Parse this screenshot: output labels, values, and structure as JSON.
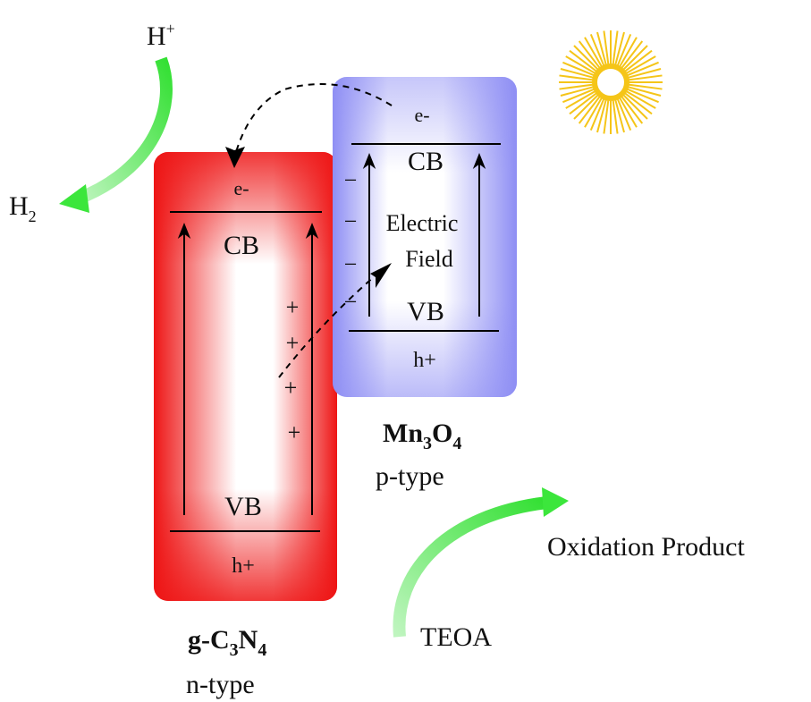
{
  "reactants": {
    "proton": "H",
    "proton_sup": "+",
    "hydrogen": "H",
    "hydrogen_sub": "2",
    "donor": "TEOA",
    "product": "Oxidation Product"
  },
  "gcn": {
    "electron": "e-",
    "cb": "CB",
    "vb": "VB",
    "hole": "h+",
    "name_a": "g-C",
    "name_sub1": "3",
    "name_b": "N",
    "name_sub2": "4",
    "type": "n-type",
    "charges": [
      "+",
      "+",
      "+",
      "+"
    ],
    "color": "#ee1c1c"
  },
  "mno": {
    "electron": "e-",
    "cb": "CB",
    "vb": "VB",
    "hole": "h+",
    "name_a": "Mn",
    "name_sub1": "3",
    "name_b": "O",
    "name_sub2": "4",
    "type": "p-type",
    "charges": [
      "−",
      "−",
      "−",
      "−"
    ],
    "color": "#8c8cf2"
  },
  "field": {
    "line1": "Electric",
    "line2": "Field"
  },
  "colors": {
    "arrow_green": "#3ce63c",
    "sun": "#f5c518"
  },
  "icons": {
    "sun": "sun-icon"
  }
}
